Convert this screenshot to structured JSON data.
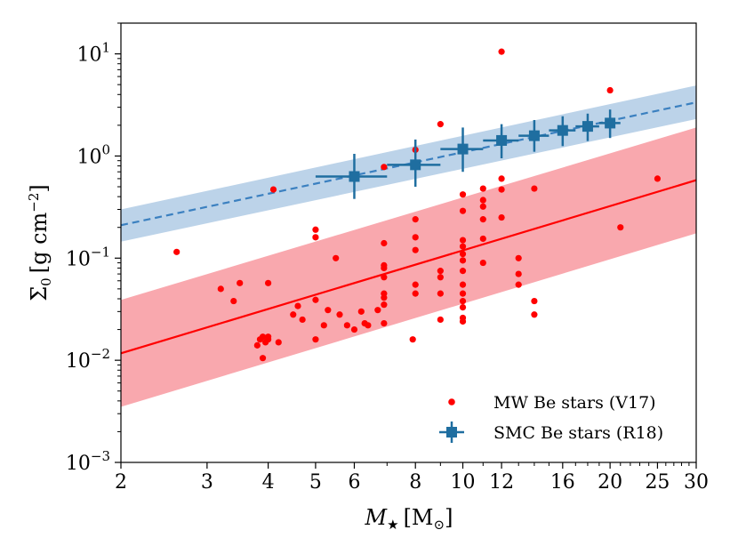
{
  "chart_data": {
    "type": "scatter",
    "xscale": "log",
    "yscale": "log",
    "xlim": [
      2,
      30
    ],
    "ylim": [
      0.001,
      20
    ],
    "xlabel": {
      "symbol": "M",
      "subscript": "★",
      "unit": "[M",
      "unit_subscript": "⊙",
      "unit_close": "]"
    },
    "ylabel": {
      "symbol": "Σ",
      "subscript": "0",
      "unit": "[g cm",
      "unit_superscript": "−2",
      "unit_close": "]"
    },
    "xticks": [
      {
        "value": 2,
        "label": "2"
      },
      {
        "value": 3,
        "label": "3"
      },
      {
        "value": 4,
        "label": "4"
      },
      {
        "value": 5,
        "label": "5"
      },
      {
        "value": 6,
        "label": "6"
      },
      {
        "value": 8,
        "label": "8"
      },
      {
        "value": 10,
        "label": "10"
      },
      {
        "value": 12,
        "label": "12"
      },
      {
        "value": 16,
        "label": "16"
      },
      {
        "value": 20,
        "label": "20"
      },
      {
        "value": 25,
        "label": "25"
      },
      {
        "value": 30,
        "label": "30"
      }
    ],
    "yticks": [
      {
        "value": 0.001,
        "base": "10",
        "exp": "−3"
      },
      {
        "value": 0.01,
        "base": "10",
        "exp": "−2"
      },
      {
        "value": 0.1,
        "base": "10",
        "exp": "−1"
      },
      {
        "value": 1,
        "base": "10",
        "exp": "0"
      },
      {
        "value": 10,
        "base": "10",
        "exp": "1"
      }
    ],
    "colors": {
      "mw": "#ff0000",
      "mw_band": "#f9a8ae",
      "smc": "#1f6ea0",
      "smc_band": "#bcd3e9",
      "smc_fit": "#3b80c0"
    },
    "mw_fit": {
      "x": [
        2,
        30
      ],
      "y": [
        0.0117,
        0.58
      ],
      "band_lower": [
        0.0035,
        0.175
      ],
      "band_upper": [
        0.039,
        1.9
      ]
    },
    "smc_fit": {
      "x": [
        2,
        30
      ],
      "y": [
        0.21,
        3.35
      ],
      "band_lower": [
        0.145,
        2.3
      ],
      "band_upper": [
        0.3,
        4.9
      ]
    },
    "series": [
      {
        "name": "MW Be stars (V17)",
        "points": [
          [
            2.6,
            0.115
          ],
          [
            3.2,
            0.05
          ],
          [
            3.4,
            0.038
          ],
          [
            3.5,
            0.057
          ],
          [
            3.8,
            0.014
          ],
          [
            3.85,
            0.016
          ],
          [
            3.9,
            0.017
          ],
          [
            3.9,
            0.0105
          ],
          [
            3.95,
            0.015
          ],
          [
            4.0,
            0.016
          ],
          [
            4.0,
            0.017
          ],
          [
            4.0,
            0.057
          ],
          [
            4.1,
            0.47
          ],
          [
            4.2,
            0.015
          ],
          [
            4.5,
            0.028
          ],
          [
            4.6,
            0.034
          ],
          [
            4.7,
            0.025
          ],
          [
            5.0,
            0.19
          ],
          [
            5.0,
            0.16
          ],
          [
            5.0,
            0.039
          ],
          [
            5.0,
            0.016
          ],
          [
            5.2,
            0.022
          ],
          [
            5.3,
            0.031
          ],
          [
            5.5,
            0.1
          ],
          [
            5.6,
            0.028
          ],
          [
            5.8,
            0.022
          ],
          [
            6.0,
            0.02
          ],
          [
            6.2,
            0.03
          ],
          [
            6.3,
            0.023
          ],
          [
            6.4,
            0.022
          ],
          [
            6.7,
            0.031
          ],
          [
            6.9,
            0.023
          ],
          [
            6.9,
            0.14
          ],
          [
            6.9,
            0.085
          ],
          [
            6.9,
            0.08
          ],
          [
            6.9,
            0.065
          ],
          [
            6.9,
            0.045
          ],
          [
            6.9,
            0.041
          ],
          [
            6.9,
            0.035
          ],
          [
            6.9,
            0.78
          ],
          [
            7.9,
            0.016
          ],
          [
            8.0,
            1.15
          ],
          [
            8.0,
            0.24
          ],
          [
            8.0,
            0.16
          ],
          [
            8.0,
            0.12
          ],
          [
            8.0,
            0.055
          ],
          [
            8.0,
            0.045
          ],
          [
            9.0,
            2.05
          ],
          [
            9.0,
            0.075
          ],
          [
            9.0,
            0.065
          ],
          [
            9.0,
            0.045
          ],
          [
            9.0,
            0.025
          ],
          [
            10.0,
            0.42
          ],
          [
            10.0,
            0.29
          ],
          [
            10.0,
            0.15
          ],
          [
            10.0,
            0.13
          ],
          [
            10.0,
            0.11
          ],
          [
            10.0,
            0.095
          ],
          [
            10.0,
            0.075
          ],
          [
            10.0,
            0.055
          ],
          [
            10.0,
            0.045
          ],
          [
            10.0,
            0.038
          ],
          [
            10.0,
            0.033
          ],
          [
            10.0,
            0.026
          ],
          [
            10.0,
            0.024
          ],
          [
            11.0,
            0.48
          ],
          [
            11.0,
            0.37
          ],
          [
            11.0,
            0.32
          ],
          [
            11.0,
            0.24
          ],
          [
            11.0,
            0.155
          ],
          [
            11.0,
            0.09
          ],
          [
            12.0,
            10.5
          ],
          [
            12.0,
            0.6
          ],
          [
            12.0,
            0.47
          ],
          [
            12.0,
            0.25
          ],
          [
            13.0,
            0.1
          ],
          [
            13.0,
            0.07
          ],
          [
            13.0,
            0.055
          ],
          [
            14.0,
            0.48
          ],
          [
            14.0,
            0.038
          ],
          [
            14.0,
            0.028
          ],
          [
            20.0,
            4.4
          ],
          [
            21.0,
            0.2
          ],
          [
            25.0,
            0.6
          ]
        ]
      },
      {
        "name": "SMC Be stars (R18)",
        "points": [
          {
            "x": 6,
            "y": 0.63,
            "xlo": 5.0,
            "xhi": 7.0,
            "ylo": 0.38,
            "yhi": 1.05
          },
          {
            "x": 8,
            "y": 0.82,
            "xlo": 7.0,
            "xhi": 9.0,
            "ylo": 0.5,
            "yhi": 1.45
          },
          {
            "x": 10,
            "y": 1.17,
            "xlo": 9.0,
            "xhi": 11.0,
            "ylo": 0.7,
            "yhi": 1.9
          },
          {
            "x": 12,
            "y": 1.42,
            "xlo": 11.0,
            "xhi": 13.0,
            "ylo": 0.95,
            "yhi": 2.05
          },
          {
            "x": 14,
            "y": 1.58,
            "xlo": 13.0,
            "xhi": 15.0,
            "ylo": 1.1,
            "yhi": 2.25
          },
          {
            "x": 16,
            "y": 1.78,
            "xlo": 15.0,
            "xhi": 17.0,
            "ylo": 1.25,
            "yhi": 2.45
          },
          {
            "x": 18,
            "y": 1.95,
            "xlo": 17.0,
            "xhi": 19.0,
            "ylo": 1.4,
            "yhi": 2.6
          },
          {
            "x": 20,
            "y": 2.1,
            "xlo": 19.0,
            "xhi": 21.0,
            "ylo": 1.5,
            "yhi": 2.85
          }
        ]
      }
    ],
    "legend": {
      "position": "lower-right",
      "entries": [
        "MW Be stars (V17)",
        "SMC Be stars (R18)"
      ]
    }
  }
}
